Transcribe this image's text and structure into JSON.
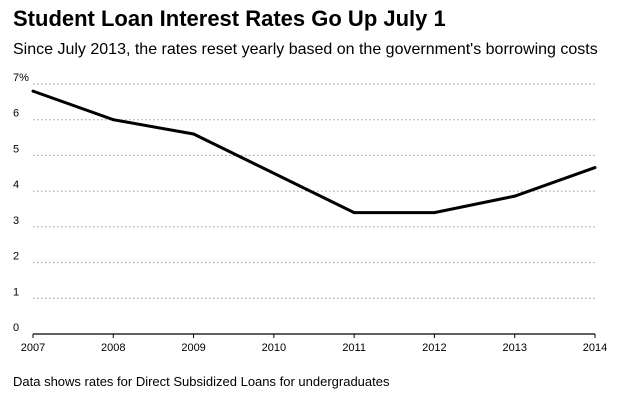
{
  "chart_data": {
    "type": "line",
    "title": "Student Loan Interest Rates Go Up July 1",
    "subtitle": "Since July 2013, the rates reset yearly based on the government's borrowing costs",
    "footnote": "Data shows rates for Direct Subsidized Loans for undergraduates",
    "xlabel": "",
    "ylabel": "",
    "x": [
      2007,
      2008,
      2009,
      2010,
      2011,
      2012,
      2013,
      2014
    ],
    "x_tick_labels": [
      "2007",
      "2008",
      "2009",
      "2010",
      "2011",
      "2012",
      "2013",
      "2014"
    ],
    "y_ticks": [
      0,
      1,
      2,
      3,
      4,
      5,
      6,
      7
    ],
    "y_tick_labels": [
      "0",
      "1",
      "2",
      "3",
      "4",
      "5",
      "6",
      "7%"
    ],
    "xlim": [
      2007,
      2014
    ],
    "ylim": [
      0,
      7
    ],
    "grid": true,
    "series": [
      {
        "x": [
          2007,
          2008,
          2009,
          2011,
          2012,
          2013,
          2014
        ],
        "values": [
          6.8,
          6.0,
          5.6,
          3.4,
          3.4,
          3.86,
          4.66
        ]
      }
    ],
    "colors": {
      "line": "#000000",
      "grid": "#999999"
    }
  }
}
